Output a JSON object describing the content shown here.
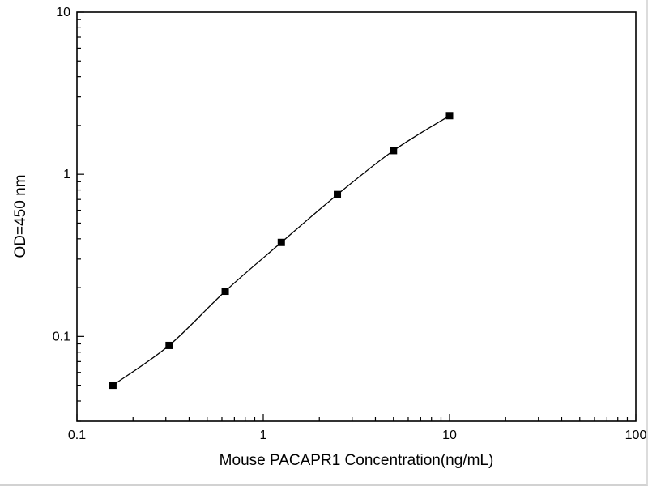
{
  "chart_data": {
    "type": "scatter",
    "subtype": "standard-curve-with-smooth-line",
    "title": "",
    "xlabel": "Mouse PACAPR1 Concentration(ng/mL)",
    "ylabel": "OD=450 nm",
    "x_scale": "log",
    "y_scale": "log",
    "xlim": [
      0.1,
      100
    ],
    "ylim": [
      0.03,
      10
    ],
    "x_ticks": [
      "0.1",
      "1",
      "10",
      "100"
    ],
    "y_ticks": [
      "0.1",
      "1",
      "10"
    ],
    "grid": "off",
    "legend": "none",
    "points": [
      {
        "x": 0.156,
        "y": 0.05
      },
      {
        "x": 0.3125,
        "y": 0.088
      },
      {
        "x": 0.625,
        "y": 0.19
      },
      {
        "x": 1.25,
        "y": 0.38
      },
      {
        "x": 2.5,
        "y": 0.75
      },
      {
        "x": 5,
        "y": 1.4
      },
      {
        "x": 10,
        "y": 2.3
      }
    ],
    "marker": "filled-square",
    "marker_color": "#000000",
    "line_color": "#000000",
    "axis_color": "#000000",
    "background": "#ffffff"
  }
}
